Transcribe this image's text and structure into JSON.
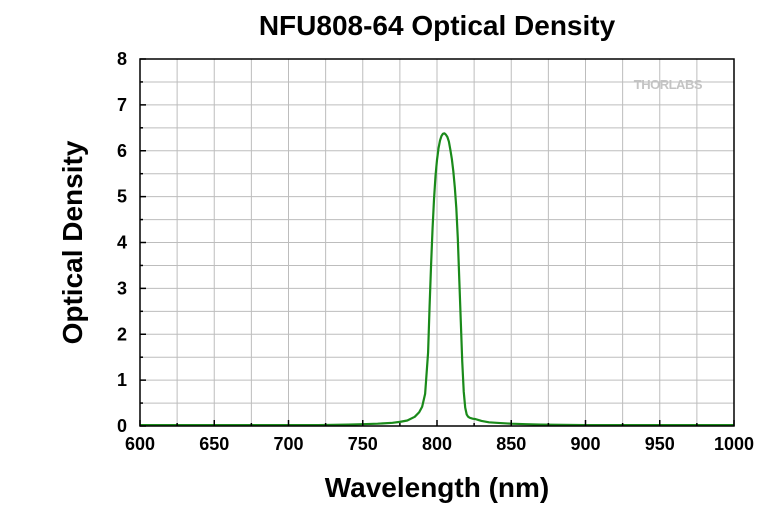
{
  "chart_data": {
    "type": "line",
    "title": "NFU808-64 Optical Density",
    "xlabel": "Wavelength (nm)",
    "ylabel": "Optical Density",
    "xlim": [
      600,
      1000
    ],
    "ylim": [
      0,
      8
    ],
    "x_ticks": [
      600,
      650,
      700,
      750,
      800,
      850,
      900,
      950,
      1000
    ],
    "y_ticks": [
      0,
      1,
      2,
      3,
      4,
      5,
      6,
      7,
      8
    ],
    "grid": true,
    "watermark": "THORLABS",
    "series": [
      {
        "color": "#1a8a1a",
        "x": [
          600,
          650,
          700,
          720,
          740,
          750,
          760,
          770,
          775,
          780,
          785,
          788,
          790,
          792,
          794,
          795,
          796,
          797,
          798,
          799,
          800,
          801,
          802,
          803,
          804,
          805,
          806,
          807,
          808,
          809,
          810,
          811,
          812,
          813,
          814,
          815,
          816,
          817,
          818,
          819,
          820,
          821,
          822,
          824,
          826,
          828,
          830,
          835,
          840,
          850,
          860,
          870,
          900,
          950,
          1000
        ],
        "values": [
          0.02,
          0.02,
          0.02,
          0.02,
          0.03,
          0.04,
          0.05,
          0.07,
          0.09,
          0.12,
          0.2,
          0.3,
          0.42,
          0.7,
          1.6,
          2.6,
          3.5,
          4.3,
          4.95,
          5.45,
          5.8,
          6.05,
          6.22,
          6.32,
          6.37,
          6.38,
          6.35,
          6.3,
          6.2,
          6.02,
          5.82,
          5.55,
          5.2,
          4.75,
          4.1,
          3.2,
          2.3,
          1.4,
          0.75,
          0.4,
          0.25,
          0.2,
          0.18,
          0.16,
          0.15,
          0.13,
          0.11,
          0.08,
          0.07,
          0.05,
          0.04,
          0.03,
          0.02,
          0.02,
          0.02
        ]
      }
    ]
  }
}
